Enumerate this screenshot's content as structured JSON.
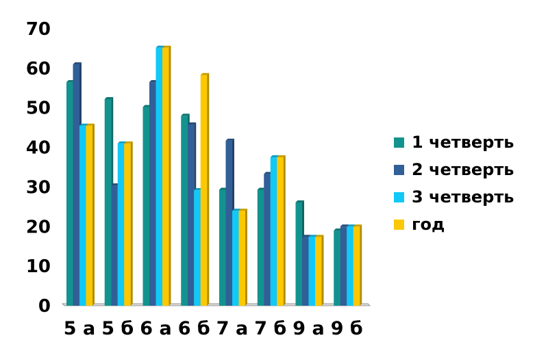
{
  "chart_data": {
    "type": "bar",
    "categories": [
      "5 а",
      "5 б",
      "6 а",
      "6 б",
      "7 а",
      "7 б",
      "9 а",
      "9 б"
    ],
    "series": [
      {
        "name": "1 четверть",
        "color": "#13938f",
        "values": [
          56.5,
          52.2,
          50.2,
          48,
          29.3,
          29.3,
          26.1,
          19
        ]
      },
      {
        "name": "2 четверть",
        "color": "#315f97",
        "values": [
          61,
          30.4,
          56.5,
          45.8,
          41.7,
          33.3,
          17.4,
          20
        ]
      },
      {
        "name": "3 четверть",
        "color": "#12c8f6",
        "values": [
          45.5,
          41,
          65.2,
          29.2,
          24,
          37.5,
          17.4,
          20
        ]
      },
      {
        "name": "год",
        "color": "#fcc800",
        "values": [
          45.5,
          41,
          65.2,
          58.3,
          24,
          37.5,
          17.4,
          20
        ]
      }
    ],
    "yticks": [
      "0",
      "10",
      "20",
      "30",
      "40",
      "50",
      "60",
      "70"
    ],
    "ylim": [
      0,
      70
    ],
    "grid": false,
    "legend_position": "right"
  }
}
